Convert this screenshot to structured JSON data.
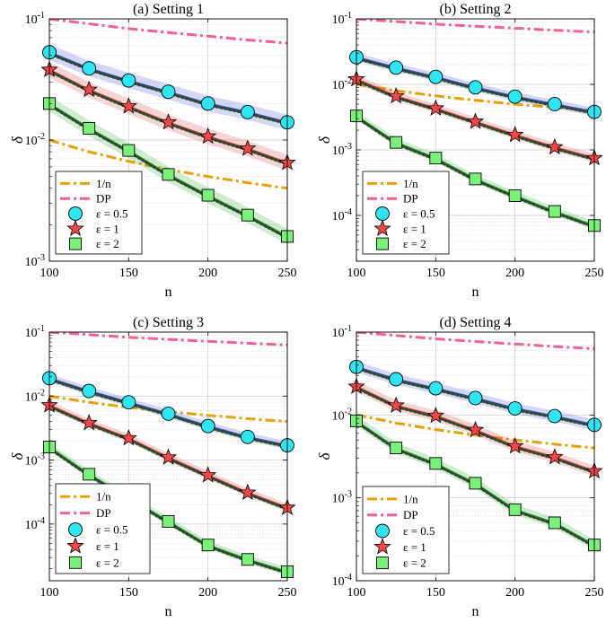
{
  "figure": {
    "xlabel": "n",
    "ylabel": "δ",
    "legend_labels": [
      "1/n",
      "DP",
      "ε = 0.5",
      "ε = 1",
      "ε = 2"
    ]
  },
  "colors": {
    "one_over_n": "#E6A00A",
    "dp": "#F0609A",
    "eps05_line": "#3A4FD0",
    "eps05_marker": "#2EE6F0",
    "eps1_line": "#D93A3A",
    "eps1_marker": "#F04848",
    "eps2_line": "#2BAA2B",
    "eps2_marker": "#7BF07B",
    "dotted": "#2E4A2E"
  },
  "chart_data": [
    {
      "type": "line",
      "title": "(a) Setting 1",
      "xlabel": "n",
      "ylabel": "δ",
      "xlim": [
        100,
        250
      ],
      "xticks": [
        100,
        150,
        200,
        250
      ],
      "ylim": [
        0.001,
        0.1
      ],
      "yscale": "log",
      "ytick_labels": [
        "10^-3",
        "10^-2",
        "10^-1"
      ],
      "legend_position": "bottom-left",
      "x": [
        100,
        125,
        150,
        175,
        200,
        225,
        250
      ],
      "series": [
        {
          "name": "1/n",
          "values": [
            0.01,
            0.008,
            0.00667,
            0.00571,
            0.005,
            0.00444,
            0.004
          ]
        },
        {
          "name": "DP",
          "values": [
            0.1,
            0.091,
            0.083,
            0.077,
            0.072,
            0.067,
            0.063
          ]
        },
        {
          "name": "ε = 0.5",
          "values": [
            0.053,
            0.039,
            0.031,
            0.025,
            0.02,
            0.017,
            0.014
          ]
        },
        {
          "name": "ε = 1",
          "values": [
            0.038,
            0.026,
            0.019,
            0.014,
            0.0107,
            0.0085,
            0.0065
          ]
        },
        {
          "name": "ε = 2",
          "values": [
            0.02,
            0.0125,
            0.0082,
            0.0052,
            0.0035,
            0.0024,
            0.0016
          ]
        }
      ]
    },
    {
      "type": "line",
      "title": "(b) Setting 2",
      "xlabel": "n",
      "ylabel": "δ",
      "xlim": [
        100,
        250
      ],
      "xticks": [
        100,
        150,
        200,
        250
      ],
      "ylim": [
        2e-05,
        0.1
      ],
      "yscale": "log",
      "ytick_labels": [
        "10^-4",
        "10^-3",
        "10^-2",
        "10^-1"
      ],
      "legend_position": "bottom-left",
      "x": [
        100,
        125,
        150,
        175,
        200,
        225,
        250
      ],
      "series": [
        {
          "name": "1/n",
          "values": [
            0.01,
            0.008,
            0.00667,
            0.00571,
            0.005,
            0.00444,
            0.004
          ]
        },
        {
          "name": "DP",
          "values": [
            0.1,
            0.091,
            0.083,
            0.077,
            0.072,
            0.067,
            0.063
          ]
        },
        {
          "name": "ε = 0.5",
          "values": [
            0.026,
            0.018,
            0.013,
            0.009,
            0.0065,
            0.005,
            0.0038
          ]
        },
        {
          "name": "ε = 1",
          "values": [
            0.012,
            0.0066,
            0.0043,
            0.0027,
            0.0017,
            0.0011,
            0.00075
          ]
        },
        {
          "name": "ε = 2",
          "values": [
            0.0033,
            0.0013,
            0.00075,
            0.00036,
            0.0002,
            0.000115,
            7e-05
          ]
        }
      ]
    },
    {
      "type": "line",
      "title": "(c) Setting 3",
      "xlabel": "n",
      "ylabel": "δ",
      "xlim": [
        100,
        250
      ],
      "xticks": [
        100,
        150,
        200,
        250
      ],
      "ylim": [
        1.3e-05,
        0.1
      ],
      "yscale": "log",
      "ytick_labels": [
        "10^-4",
        "10^-3",
        "10^-2",
        "10^-1"
      ],
      "legend_position": "bottom-left",
      "x": [
        100,
        125,
        150,
        175,
        200,
        225,
        250
      ],
      "series": [
        {
          "name": "1/n",
          "values": [
            0.01,
            0.008,
            0.00667,
            0.00571,
            0.005,
            0.00444,
            0.004
          ]
        },
        {
          "name": "DP",
          "values": [
            0.1,
            0.091,
            0.083,
            0.077,
            0.072,
            0.067,
            0.063
          ]
        },
        {
          "name": "ε = 0.5",
          "values": [
            0.019,
            0.012,
            0.008,
            0.0053,
            0.0034,
            0.0023,
            0.0017
          ]
        },
        {
          "name": "ε = 1",
          "values": [
            0.0072,
            0.0038,
            0.0022,
            0.0011,
            0.00058,
            0.00031,
            0.00018
          ]
        },
        {
          "name": "ε = 2",
          "values": [
            0.0016,
            0.0006,
            0.00026,
            0.00011,
            4.7e-05,
            2.8e-05,
            1.8e-05
          ]
        }
      ]
    },
    {
      "type": "line",
      "title": "(d) Setting 4",
      "xlabel": "n",
      "ylabel": "δ",
      "xlim": [
        100,
        250
      ],
      "xticks": [
        100,
        150,
        200,
        250
      ],
      "ylim": [
        0.0001,
        0.1
      ],
      "yscale": "log",
      "ytick_labels": [
        "10^-4",
        "10^-3",
        "10^-2",
        "10^-1"
      ],
      "legend_position": "bottom-left",
      "x": [
        100,
        125,
        150,
        175,
        200,
        225,
        250
      ],
      "series": [
        {
          "name": "1/n",
          "values": [
            0.01,
            0.008,
            0.00667,
            0.00571,
            0.005,
            0.00444,
            0.004
          ]
        },
        {
          "name": "DP",
          "values": [
            0.1,
            0.091,
            0.083,
            0.077,
            0.072,
            0.067,
            0.063
          ]
        },
        {
          "name": "ε = 0.5",
          "values": [
            0.038,
            0.027,
            0.021,
            0.016,
            0.012,
            0.0097,
            0.0076
          ]
        },
        {
          "name": "ε = 1",
          "values": [
            0.022,
            0.013,
            0.0098,
            0.0066,
            0.0042,
            0.0031,
            0.0021
          ]
        },
        {
          "name": "ε = 2",
          "values": [
            0.0085,
            0.004,
            0.0026,
            0.0015,
            0.00072,
            0.0005,
            0.00027
          ]
        }
      ]
    }
  ]
}
